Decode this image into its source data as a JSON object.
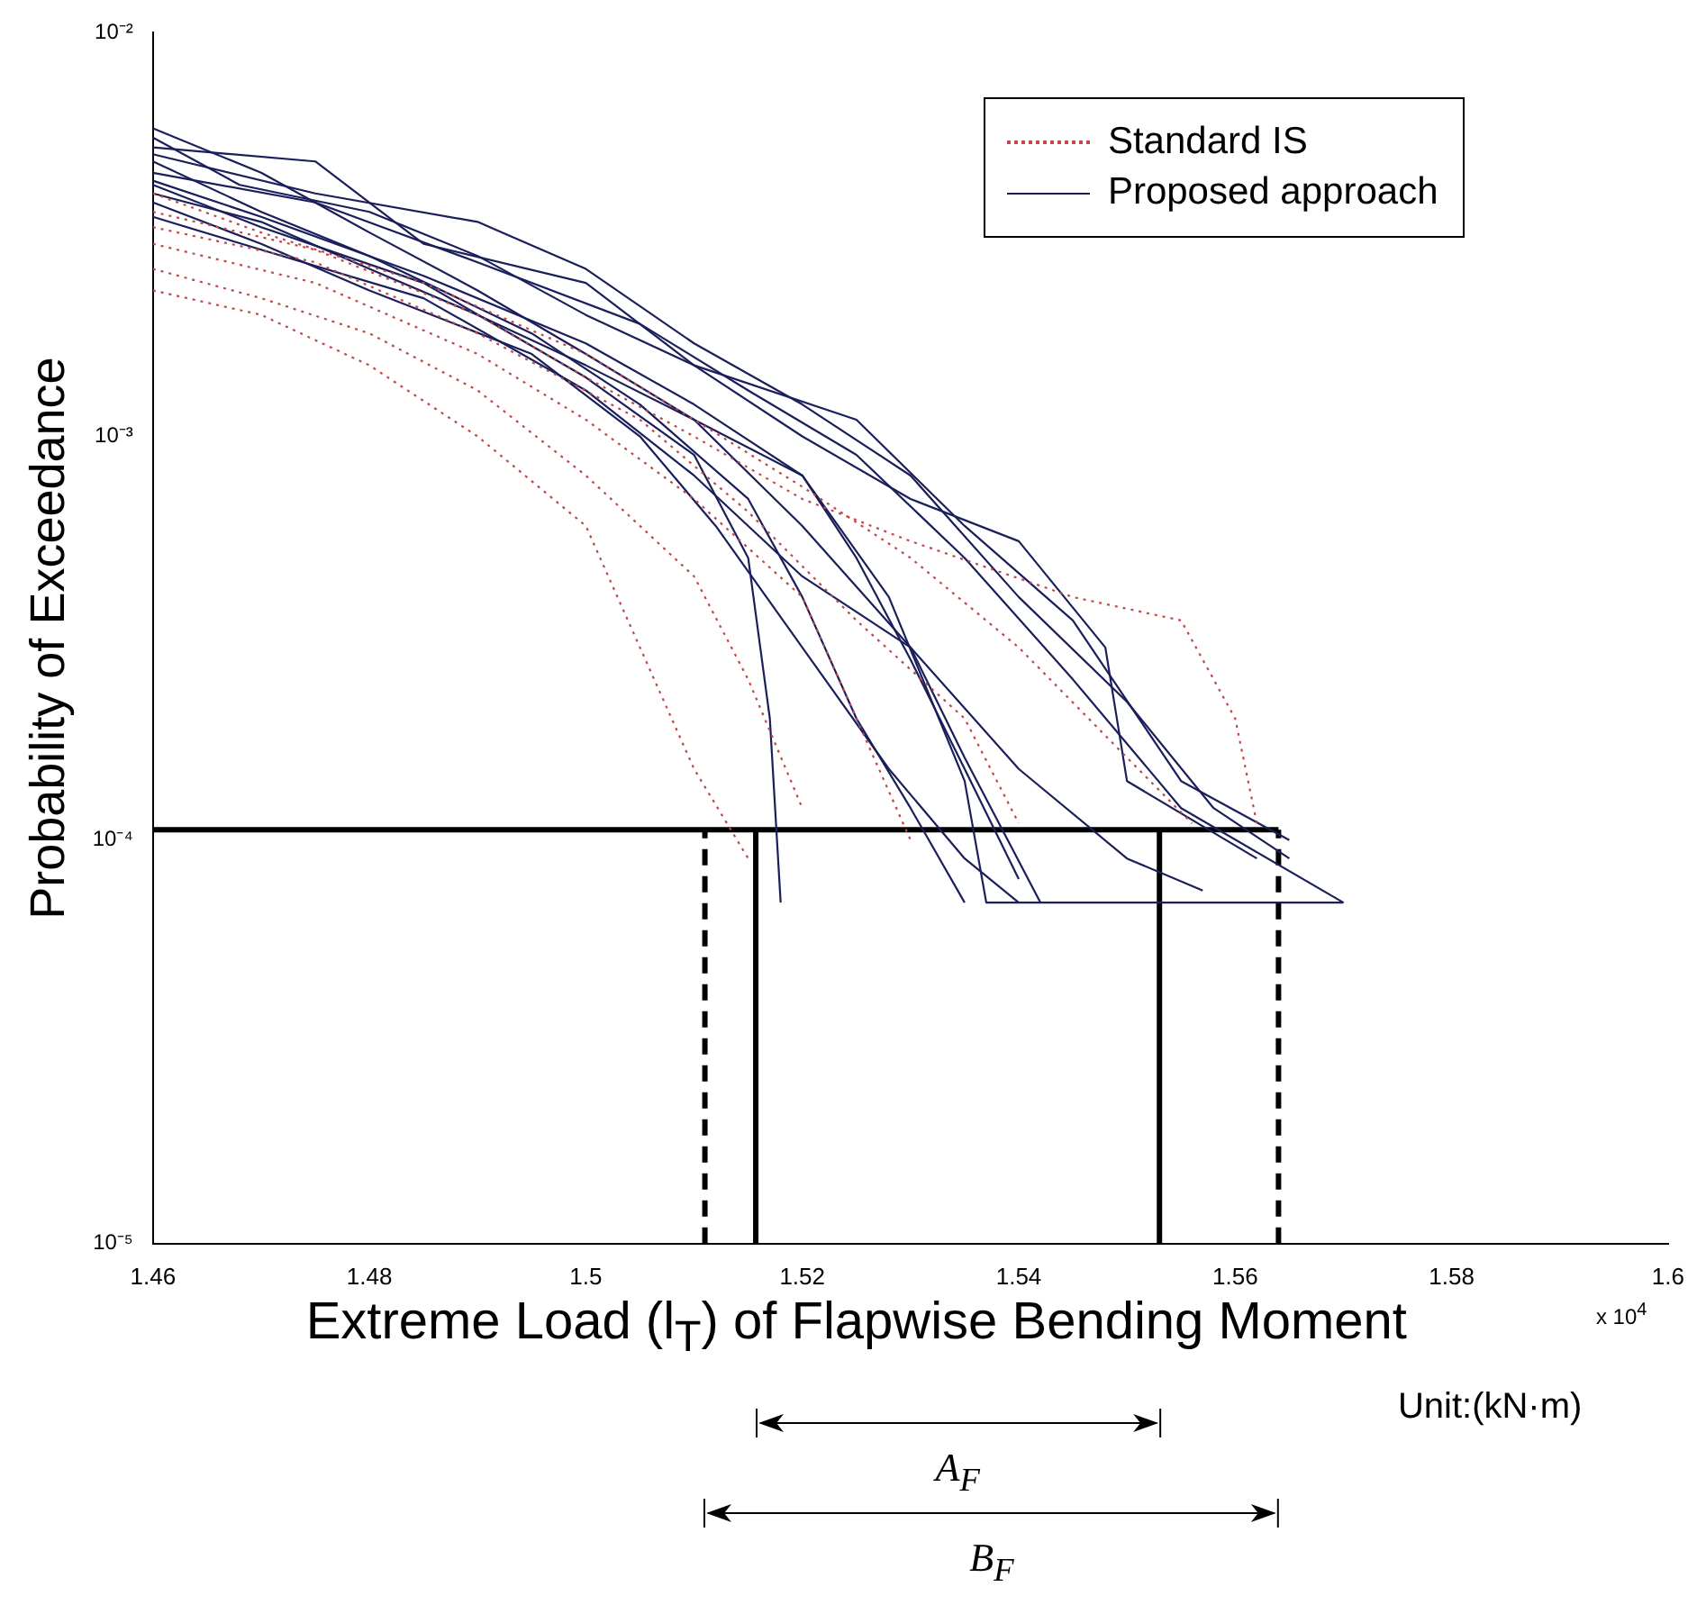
{
  "chart_data": {
    "type": "line",
    "xlabel": "Extreme Load (l$_{T}$) of Flapwise Bending Moment",
    "ylabel": "Probability of Exceedance",
    "annotations": [
      "x 10$^{4}$",
      "Unit:(kN·m)",
      "A$_{F}$",
      "B$_{F}$"
    ],
    "xlim": [
      1.46,
      1.6
    ],
    "xticks": [
      1.46,
      1.48,
      1.5,
      1.52,
      1.54,
      1.56,
      1.58,
      1.6
    ],
    "ylim": [
      1e-05,
      0.01
    ],
    "yticks": [
      {
        "value": 1e-05,
        "label": "10⁻⁵"
      },
      {
        "value": 0.0001,
        "label": "10⁻⁴"
      },
      {
        "value": 0.001,
        "label": "10⁻³"
      },
      {
        "value": 0.01,
        "label": "10⁻²"
      }
    ],
    "log": "y",
    "grid": false,
    "legend": "top right",
    "marker": "none",
    "series": [
      {
        "name": "Standard IS",
        "color": "#c04848",
        "line_style": "dotted",
        "x": [
          1.46,
          1.47,
          1.48,
          1.49,
          1.5,
          1.505,
          1.51,
          1.515
        ],
        "values": [
          0.0023,
          0.002,
          0.0015,
          0.001,
          0.0006,
          0.0003,
          0.00015,
          9e-05
        ]
      },
      {
        "color": "#c04848",
        "line_style": "dotted",
        "x": [
          1.46,
          1.475,
          1.49,
          1.5,
          1.51,
          1.52,
          1.525,
          1.53
        ],
        "values": [
          0.003,
          0.0024,
          0.0016,
          0.0011,
          0.0007,
          0.0004,
          0.0002,
          0.0001
        ]
      },
      {
        "color": "#c04848",
        "line_style": "dotted",
        "x": [
          1.46,
          1.475,
          1.49,
          1.5,
          1.51,
          1.52,
          1.53,
          1.545,
          1.555,
          1.56,
          1.562
        ],
        "values": [
          0.0036,
          0.0029,
          0.002,
          0.0014,
          0.001,
          0.0007,
          0.00055,
          0.0004,
          0.00035,
          0.0002,
          0.00011
        ]
      },
      {
        "color": "#c04848",
        "line_style": "dotted",
        "x": [
          1.46,
          1.47,
          1.485,
          1.5,
          1.51,
          1.52,
          1.53,
          1.54,
          1.55,
          1.556
        ],
        "values": [
          0.004,
          0.0032,
          0.0024,
          0.0016,
          0.0011,
          0.00075,
          0.0005,
          0.0003,
          0.00016,
          0.00011
        ]
      },
      {
        "color": "#c04848",
        "line_style": "dotted",
        "x": [
          1.46,
          1.47,
          1.48,
          1.49,
          1.5,
          1.51,
          1.515,
          1.52
        ],
        "values": [
          0.0026,
          0.0022,
          0.0018,
          0.0013,
          0.0008,
          0.00045,
          0.00025,
          0.00012
        ]
      },
      {
        "color": "#c04848",
        "line_style": "dotted",
        "x": [
          1.46,
          1.475,
          1.49,
          1.505,
          1.515,
          1.525,
          1.535,
          1.54
        ],
        "values": [
          0.0033,
          0.0027,
          0.0018,
          0.0011,
          0.00065,
          0.00035,
          0.0002,
          0.00011
        ]
      },
      {
        "name": "Proposed approach",
        "color": "#1a1f5c",
        "line_style": "solid",
        "x": [
          1.46,
          1.47,
          1.48,
          1.49,
          1.5,
          1.51,
          1.52,
          1.53,
          1.54,
          1.55,
          1.557
        ],
        "values": [
          0.0058,
          0.0045,
          0.0032,
          0.0023,
          0.0016,
          0.0011,
          0.0006,
          0.0003,
          0.00015,
          9e-05,
          7.5e-05
        ]
      },
      {
        "color": "#1a1f5c",
        "line_style": "solid",
        "x": [
          1.46,
          1.475,
          1.485,
          1.5,
          1.51,
          1.525,
          1.535,
          1.545,
          1.555,
          1.565
        ],
        "values": [
          0.0052,
          0.0048,
          0.003,
          0.0024,
          0.0015,
          0.0011,
          0.0006,
          0.00035,
          0.00014,
          0.0001
        ]
      },
      {
        "color": "#1a1f5c",
        "line_style": "solid",
        "x": [
          1.46,
          1.47,
          1.48,
          1.495,
          1.505,
          1.515,
          1.52,
          1.525,
          1.53,
          1.535
        ],
        "values": [
          0.0048,
          0.0036,
          0.0028,
          0.0018,
          0.0012,
          0.0007,
          0.0004,
          0.0002,
          0.00012,
          7e-05
        ]
      },
      {
        "color": "#1a1f5c",
        "line_style": "solid",
        "x": [
          1.46,
          1.47,
          1.485,
          1.5,
          1.51,
          1.515,
          1.517,
          1.518
        ],
        "values": [
          0.0042,
          0.0033,
          0.0024,
          0.0014,
          0.0009,
          0.0005,
          0.0002,
          7e-05
        ]
      },
      {
        "color": "#1a1f5c",
        "line_style": "solid",
        "x": [
          1.46,
          1.475,
          1.49,
          1.505,
          1.515,
          1.525,
          1.535,
          1.545,
          1.555,
          1.57
        ],
        "values": [
          0.0045,
          0.0038,
          0.0027,
          0.0019,
          0.0013,
          0.0009,
          0.0005,
          0.00025,
          0.00012,
          7e-05
        ]
      },
      {
        "color": "#1a1f5c",
        "line_style": "solid",
        "x": [
          1.46,
          1.47,
          1.48,
          1.495,
          1.505,
          1.512,
          1.52,
          1.528,
          1.535,
          1.54
        ],
        "values": [
          0.0038,
          0.003,
          0.0023,
          0.0016,
          0.001,
          0.0006,
          0.0003,
          0.00015,
          9e-05,
          7e-05
        ]
      },
      {
        "color": "#1a1f5c",
        "line_style": "solid",
        "x": [
          1.46,
          1.468,
          1.48,
          1.49,
          1.5,
          1.51,
          1.52,
          1.53,
          1.54,
          1.548,
          1.55,
          1.562
        ],
        "values": [
          0.0055,
          0.0042,
          0.0036,
          0.0028,
          0.002,
          0.0015,
          0.001,
          0.0007,
          0.00055,
          0.0003,
          0.00014,
          9e-05
        ]
      },
      {
        "color": "#1a1f5c",
        "line_style": "solid",
        "x": [
          1.46,
          1.47,
          1.48,
          1.49,
          1.5,
          1.51,
          1.52,
          1.525,
          1.53,
          1.535,
          1.54
        ],
        "values": [
          0.004,
          0.0034,
          0.0026,
          0.002,
          0.0015,
          0.0011,
          0.0008,
          0.0005,
          0.00028,
          0.00015,
          8e-05
        ]
      },
      {
        "color": "#1a1f5c",
        "line_style": "solid",
        "x": [
          1.46,
          1.47,
          1.485,
          1.5,
          1.51,
          1.52,
          1.53,
          1.535,
          1.542
        ],
        "values": [
          0.0035,
          0.0029,
          0.0022,
          0.0013,
          0.0008,
          0.00045,
          0.0003,
          0.00016,
          7e-05
        ]
      },
      {
        "color": "#1a1f5c",
        "line_style": "solid",
        "x": [
          1.46,
          1.475,
          1.49,
          1.5,
          1.51,
          1.52,
          1.53,
          1.54,
          1.55,
          1.558,
          1.565
        ],
        "values": [
          0.005,
          0.004,
          0.0034,
          0.0026,
          0.0017,
          0.0012,
          0.0008,
          0.0004,
          0.00022,
          0.00012,
          9e-05
        ]
      },
      {
        "color": "#1a1f5c",
        "line_style": "solid",
        "x": [
          1.46,
          1.47,
          1.485,
          1.5,
          1.51,
          1.52,
          1.528,
          1.535,
          1.537,
          1.57
        ],
        "values": [
          0.0043,
          0.0035,
          0.0025,
          0.0017,
          0.0012,
          0.0008,
          0.0004,
          0.00014,
          7e-05,
          7e-05
        ]
      },
      {
        "color": "#000000",
        "line_style": "solid",
        "x": [
          1.46,
          1.564
        ],
        "values": [
          0.000106,
          0.000106
        ]
      },
      {
        "color": "#000000",
        "line_style": "dashed",
        "x": [
          1.511,
          1.511
        ],
        "values": [
          1e-05,
          0.000106
        ]
      },
      {
        "color": "#000000",
        "line_style": "solid",
        "x": [
          1.5157,
          1.5157
        ],
        "values": [
          1e-05,
          0.000106
        ]
      },
      {
        "color": "#000000",
        "line_style": "solid",
        "x": [
          1.553,
          1.553
        ],
        "values": [
          1e-05,
          0.000106
        ]
      },
      {
        "color": "#000000",
        "line_style": "dashed",
        "x": [
          1.564,
          1.564
        ],
        "values": [
          1e-05,
          0.000106
        ]
      }
    ]
  }
}
